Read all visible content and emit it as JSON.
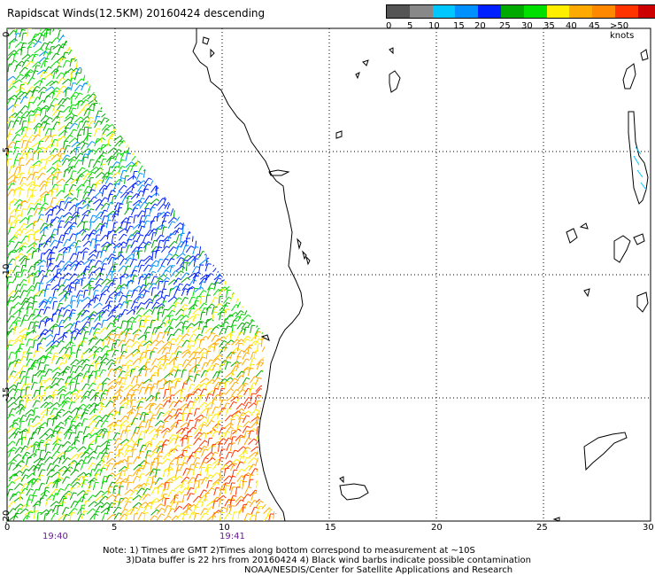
{
  "title": "Rapidscat Winds(12.5KM) 20160424 descending",
  "legend": {
    "colors": [
      "#555555",
      "#888888",
      "#00c8ff",
      "#0090ff",
      "#0020ff",
      "#00aa00",
      "#00e000",
      "#ffee00",
      "#ffaa00",
      "#ff8800",
      "#ff3300",
      "#cc0000",
      "#884400",
      "#bb00bb",
      "#ff00ff",
      "#7700cc",
      "#440088"
    ],
    "labels": [
      "0",
      "5",
      "10",
      "15",
      "20",
      "25",
      "30",
      "35",
      "40",
      "45",
      ">50 knots"
    ]
  },
  "axes": {
    "x_ticks": [
      "0",
      "5",
      "10",
      "15",
      "20",
      "25",
      "30"
    ],
    "y_ticks": [
      "0",
      "-5",
      "-10",
      "-15",
      "-20"
    ]
  },
  "times": [
    "19:40",
    "19:41"
  ],
  "notes": [
    "Note: 1) Times are GMT 2)Times along bottom correspond to measurement at ~10S",
    "3)Data buffer is 22 hrs from 20160424 4) Black wind barbs indicate possible contamination",
    "NOAA/NESDIS/Center for Satellite Applications and Research"
  ]
}
